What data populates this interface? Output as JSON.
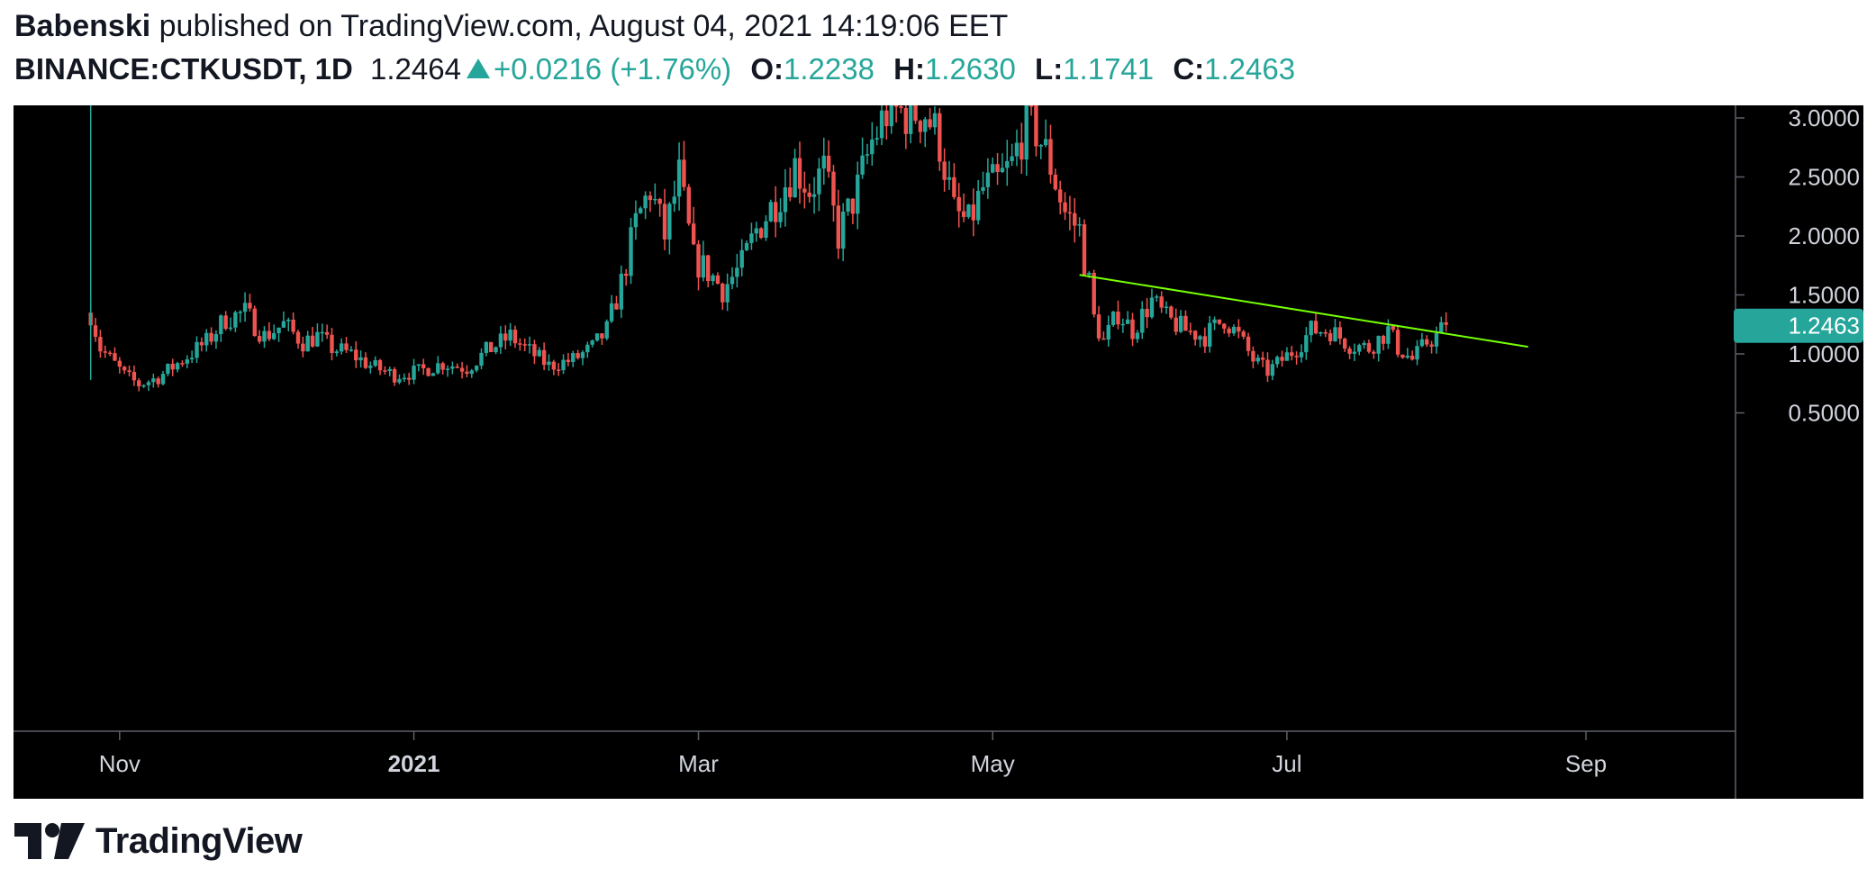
{
  "header": {
    "author": "Babenski",
    "published_text": "published on TradingView.com, August 04, 2021 14:19:06 EET",
    "symbol": "BINANCE:CTKUSDT, 1D",
    "last_price": "1.2464",
    "change": "+0.0216 (+1.76%)",
    "open_label": "O:",
    "open": "1.2238",
    "high_label": "H:",
    "high": "1.2630",
    "low_label": "L:",
    "low": "1.1741",
    "close_label": "C:",
    "close": "1.2463"
  },
  "brand": {
    "name": "TradingView",
    "logo_icon": "tradingview-logo-icon"
  },
  "colors": {
    "up": "#26a69a",
    "down": "#ef5350",
    "trendline": "#76ff03",
    "background": "#000000",
    "axis_text": "#d1d4dc",
    "price_badge": "#26a69a"
  },
  "chart_data": {
    "type": "candlestick",
    "title": "BINANCE:CTKUSDT, 1D",
    "xlabel": "",
    "ylabel": "",
    "x_range": [
      "2020-10-10",
      "2021-10-02"
    ],
    "ylim": [
      0.45,
      3.05
    ],
    "y_ticks": [
      "3.0000",
      "2.5000",
      "2.0000",
      "1.5000",
      "1.0000",
      "0.5000"
    ],
    "x_ticks": [
      {
        "date": "2020-11-01",
        "label": "Nov",
        "bold": false
      },
      {
        "date": "2021-01-01",
        "label": "2021",
        "bold": true
      },
      {
        "date": "2021-03-01",
        "label": "Mar",
        "bold": false
      },
      {
        "date": "2021-05-01",
        "label": "May",
        "bold": false
      },
      {
        "date": "2021-07-01",
        "label": "Jul",
        "bold": false
      },
      {
        "date": "2021-09-01",
        "label": "Sep",
        "bold": false
      }
    ],
    "last_price_label": "1.2463",
    "grid": false,
    "series": [
      {
        "name": "CTKUSDT",
        "close_points": [
          [
            "2020-10-26",
            1.35
          ],
          [
            "2020-10-28",
            1.05
          ],
          [
            "2020-11-02",
            0.82
          ],
          [
            "2020-11-05",
            0.74
          ],
          [
            "2020-11-09",
            0.8
          ],
          [
            "2020-11-14",
            0.95
          ],
          [
            "2020-11-19",
            1.1
          ],
          [
            "2020-11-23",
            1.3
          ],
          [
            "2020-11-27",
            1.35
          ],
          [
            "2020-12-01",
            1.15
          ],
          [
            "2020-12-05",
            1.25
          ],
          [
            "2020-12-09",
            1.1
          ],
          [
            "2020-12-12",
            1.15
          ],
          [
            "2020-12-15",
            1.05
          ],
          [
            "2020-12-19",
            1.0
          ],
          [
            "2020-12-23",
            0.9
          ],
          [
            "2020-12-28",
            0.82
          ],
          [
            "2021-01-02",
            0.85
          ],
          [
            "2021-01-07",
            0.92
          ],
          [
            "2021-01-12",
            0.88
          ],
          [
            "2021-01-16",
            1.02
          ],
          [
            "2021-01-21",
            1.15
          ],
          [
            "2021-01-24",
            1.05
          ],
          [
            "2021-01-29",
            0.9
          ],
          [
            "2021-02-03",
            0.95
          ],
          [
            "2021-02-07",
            1.05
          ],
          [
            "2021-02-10",
            1.2
          ],
          [
            "2021-02-13",
            1.6
          ],
          [
            "2021-02-16",
            2.1
          ],
          [
            "2021-02-19",
            2.4
          ],
          [
            "2021-02-22",
            2.0
          ],
          [
            "2021-02-25",
            2.5
          ],
          [
            "2021-02-28",
            1.8
          ],
          [
            "2021-03-03",
            1.7
          ],
          [
            "2021-03-06",
            1.55
          ],
          [
            "2021-03-10",
            1.75
          ],
          [
            "2021-03-13",
            2.05
          ],
          [
            "2021-03-17",
            2.3
          ],
          [
            "2021-03-21",
            2.6
          ],
          [
            "2021-03-24",
            2.4
          ],
          [
            "2021-03-27",
            2.55
          ],
          [
            "2021-03-30",
            2.0
          ],
          [
            "2021-04-03",
            2.4
          ],
          [
            "2021-04-06",
            2.8
          ],
          [
            "2021-04-09",
            3.05
          ],
          [
            "2021-04-13",
            3.05
          ],
          [
            "2021-04-17",
            3.05
          ],
          [
            "2021-04-20",
            2.8
          ],
          [
            "2021-04-23",
            2.2
          ],
          [
            "2021-04-26",
            2.1
          ],
          [
            "2021-04-29",
            2.4
          ],
          [
            "2021-05-02",
            2.45
          ],
          [
            "2021-05-05",
            2.6
          ],
          [
            "2021-05-08",
            3.0
          ],
          [
            "2021-05-10",
            2.9
          ],
          [
            "2021-05-13",
            2.6
          ],
          [
            "2021-05-16",
            2.2
          ],
          [
            "2021-05-19",
            2.05
          ],
          [
            "2021-05-20",
            1.8
          ],
          [
            "2021-05-21",
            1.6
          ],
          [
            "2021-05-22",
            1.3
          ],
          [
            "2021-05-24",
            1.1
          ],
          [
            "2021-05-27",
            1.35
          ],
          [
            "2021-05-30",
            1.2
          ],
          [
            "2021-06-03",
            1.45
          ],
          [
            "2021-06-06",
            1.3
          ],
          [
            "2021-06-10",
            1.2
          ],
          [
            "2021-06-14",
            1.15
          ],
          [
            "2021-06-18",
            1.3
          ],
          [
            "2021-06-21",
            1.15
          ],
          [
            "2021-06-24",
            0.95
          ],
          [
            "2021-06-27",
            0.85
          ],
          [
            "2021-06-30",
            0.95
          ],
          [
            "2021-07-03",
            1.05
          ],
          [
            "2021-07-06",
            1.2
          ],
          [
            "2021-07-10",
            1.2
          ],
          [
            "2021-07-14",
            1.08
          ],
          [
            "2021-07-18",
            1.05
          ],
          [
            "2021-07-22",
            1.2
          ],
          [
            "2021-07-24",
            1.05
          ],
          [
            "2021-07-27",
            0.95
          ],
          [
            "2021-07-30",
            1.1
          ],
          [
            "2021-08-01",
            1.15
          ],
          [
            "2021-08-03",
            1.25
          ]
        ]
      }
    ],
    "trendline": {
      "start": [
        "2021-05-19",
        1.67
      ],
      "end": [
        "2021-08-20",
        1.06
      ]
    }
  }
}
